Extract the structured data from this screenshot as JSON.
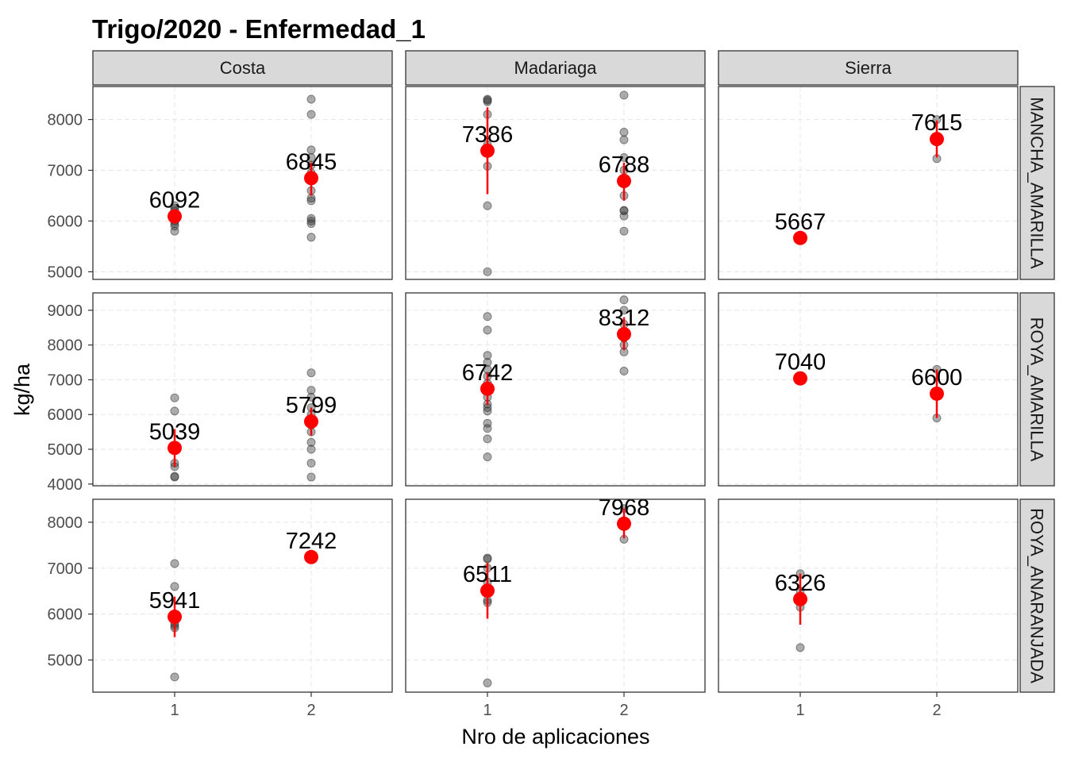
{
  "chart_data": {
    "type": "scatter",
    "title": "Trigo/2020 - Enfermedad_1",
    "xlabel": "Nro de aplicaciones",
    "ylabel": "kg/ha",
    "x_ticks": [
      "1",
      "2"
    ],
    "columns": [
      "Costa",
      "Madariaga",
      "Sierra"
    ],
    "rows": [
      {
        "name": "MANCHA_AMARILLA",
        "ylim": [
          4850,
          8650
        ],
        "yticks": [
          5000,
          6000,
          7000,
          8000
        ]
      },
      {
        "name": "ROYA_AMARILLA",
        "ylim": [
          3950,
          9500
        ],
        "yticks": [
          4000,
          5000,
          6000,
          7000,
          8000,
          9000
        ]
      },
      {
        "name": "ROYA_ANARANJADA",
        "ylim": [
          4300,
          8500
        ],
        "yticks": [
          5000,
          6000,
          7000,
          8000
        ]
      }
    ],
    "colors": {
      "mean": "#ff0000",
      "points": "#333333",
      "panel_border": "#333333",
      "strip_fill": "#d9d9d9",
      "grid": "#e5e5e5"
    },
    "panels": [
      {
        "row": 0,
        "col": 0,
        "groups": [
          {
            "x": 1,
            "mean": 6092,
            "label": "6092",
            "err": [
              5950,
              6230
            ],
            "points": [
              5800,
              5900,
              5950,
              6000,
              6100,
              6200,
              6250,
              6300
            ]
          },
          {
            "x": 2,
            "mean": 6845,
            "label": "6845",
            "err": [
              6500,
              7150
            ],
            "points": [
              5680,
              5950,
              6000,
              6050,
              6400,
              6450,
              6600,
              6800,
              6950,
              7100,
              7250,
              7400,
              8100,
              8400
            ]
          }
        ]
      },
      {
        "row": 0,
        "col": 1,
        "groups": [
          {
            "x": 1,
            "mean": 7386,
            "label": "7386",
            "err": [
              6530,
              8240
            ],
            "points": [
              5000,
              6300,
              7080,
              7500,
              8100,
              8350,
              8380,
              8400
            ]
          },
          {
            "x": 2,
            "mean": 6788,
            "label": "6788",
            "err": [
              6400,
              7150
            ],
            "points": [
              5800,
              6100,
              6200,
              6210,
              6500,
              6800,
              7000,
              7250,
              7600,
              7750,
              8480
            ]
          }
        ]
      },
      {
        "row": 0,
        "col": 2,
        "groups": [
          {
            "x": 1,
            "mean": 5667,
            "label": "5667",
            "err": null,
            "points": [
              5667
            ]
          },
          {
            "x": 2,
            "mean": 7615,
            "label": "7615",
            "err": [
              7250,
              7980
            ],
            "points": [
              7230,
              8000
            ]
          }
        ]
      },
      {
        "row": 1,
        "col": 0,
        "groups": [
          {
            "x": 1,
            "mean": 5039,
            "label": "5039",
            "err": [
              4500,
              5580
            ],
            "points": [
              4200,
              4220,
              4500,
              4600,
              5000,
              6100,
              6480
            ]
          },
          {
            "x": 2,
            "mean": 5799,
            "label": "5799",
            "err": [
              5400,
              6200
            ],
            "points": [
              4200,
              4600,
              5000,
              5200,
              5500,
              5700,
              6000,
              6200,
              6500,
              6700,
              7200
            ]
          }
        ]
      },
      {
        "row": 1,
        "col": 1,
        "groups": [
          {
            "x": 1,
            "mean": 6742,
            "label": "6742",
            "err": [
              6280,
              7200
            ],
            "points": [
              4780,
              5300,
              5600,
              5750,
              6100,
              6200,
              6300,
              6500,
              6700,
              6900,
              7100,
              7300,
              7500,
              7700,
              8430,
              8820
            ]
          },
          {
            "x": 2,
            "mean": 8312,
            "label": "8312",
            "err": [
              7850,
              8800
            ],
            "points": [
              7250,
              7800,
              8000,
              8200,
              8600,
              9000,
              9300
            ]
          }
        ]
      },
      {
        "row": 1,
        "col": 2,
        "groups": [
          {
            "x": 1,
            "mean": 7040,
            "label": "7040",
            "err": null,
            "points": [
              7040
            ]
          },
          {
            "x": 2,
            "mean": 6600,
            "label": "6600",
            "err": [
              5900,
              7300
            ],
            "points": [
              5900,
              7300
            ]
          }
        ]
      },
      {
        "row": 2,
        "col": 0,
        "groups": [
          {
            "x": 1,
            "mean": 5941,
            "label": "5941",
            "err": [
              5500,
              6380
            ],
            "points": [
              4630,
              5700,
              5750,
              5800,
              5900,
              6600,
              7100
            ]
          },
          {
            "x": 2,
            "mean": 7242,
            "label": "7242",
            "err": null,
            "points": [
              7242
            ]
          }
        ]
      },
      {
        "row": 2,
        "col": 1,
        "groups": [
          {
            "x": 1,
            "mean": 6511,
            "label": "6511",
            "err": [
              5900,
              7120
            ],
            "points": [
              4500,
              6250,
              6300,
              6500,
              6700,
              7000,
              7200,
              7220
            ]
          },
          {
            "x": 2,
            "mean": 7968,
            "label": "7968",
            "err": [
              7650,
              8300
            ],
            "points": [
              7630,
              8300
            ]
          }
        ]
      },
      {
        "row": 2,
        "col": 2,
        "groups": [
          {
            "x": 1,
            "mean": 6326,
            "label": "6326",
            "err": [
              5770,
              6880
            ],
            "points": [
              5270,
              6150,
              6500,
              6880
            ]
          }
        ]
      }
    ]
  }
}
